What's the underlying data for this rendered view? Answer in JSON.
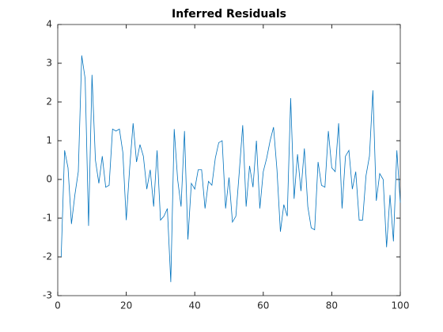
{
  "chart_data": {
    "type": "line",
    "title": "Inferred Residuals",
    "x": [
      1,
      2,
      3,
      4,
      5,
      6,
      7,
      8,
      9,
      10,
      11,
      12,
      13,
      14,
      15,
      16,
      17,
      18,
      19,
      20,
      21,
      22,
      23,
      24,
      25,
      26,
      27,
      28,
      29,
      30,
      31,
      32,
      33,
      34,
      35,
      36,
      37,
      38,
      39,
      40,
      41,
      42,
      43,
      44,
      45,
      46,
      47,
      48,
      49,
      50,
      51,
      52,
      53,
      54,
      55,
      56,
      57,
      58,
      59,
      60,
      61,
      62,
      63,
      64,
      65,
      66,
      67,
      68,
      69,
      70,
      71,
      72,
      73,
      74,
      75,
      76,
      77,
      78,
      79,
      80,
      81,
      82,
      83,
      84,
      85,
      86,
      87,
      88,
      89,
      90,
      91,
      92,
      93,
      94,
      95,
      96,
      97,
      98,
      99,
      100
    ],
    "series": [
      {
        "color": "#0072bd",
        "values": [
          -2.0,
          0.75,
          0.3,
          -1.15,
          -0.4,
          0.2,
          3.2,
          2.6,
          -1.2,
          2.7,
          0.5,
          -0.1,
          0.6,
          -0.2,
          -0.15,
          1.3,
          1.25,
          1.3,
          0.7,
          -1.05,
          0.3,
          1.45,
          0.45,
          0.9,
          0.6,
          -0.25,
          0.25,
          -0.7,
          0.75,
          -1.05,
          -0.95,
          -0.75,
          -2.65,
          1.3,
          0.0,
          -0.7,
          1.25,
          -1.55,
          -0.1,
          -0.25,
          0.25,
          0.25,
          -0.75,
          -0.05,
          -0.15,
          0.55,
          0.95,
          1.0,
          -0.75,
          0.05,
          -1.1,
          -0.95,
          0.2,
          1.4,
          -0.7,
          0.35,
          -0.2,
          1.0,
          -0.75,
          0.2,
          0.55,
          1.0,
          1.35,
          0.25,
          -1.35,
          -0.65,
          -0.95,
          2.1,
          -0.5,
          0.65,
          -0.3,
          0.8,
          -0.7,
          -1.25,
          -1.3,
          0.45,
          -0.15,
          -0.2,
          1.25,
          0.3,
          0.2,
          1.45,
          -0.75,
          0.6,
          0.75,
          -0.25,
          0.2,
          -1.05,
          -1.05,
          0.1,
          0.6,
          2.3,
          -0.55,
          0.15,
          0.0,
          -1.75,
          -0.4,
          -1.6,
          0.75,
          -0.6
        ]
      }
    ],
    "xlim": [
      0,
      100
    ],
    "xticks": [
      0,
      20,
      40,
      60,
      80,
      100
    ],
    "ylim": [
      -3,
      4
    ],
    "yticks": [
      -3,
      -2,
      -1,
      0,
      1,
      2,
      3,
      4
    ]
  }
}
